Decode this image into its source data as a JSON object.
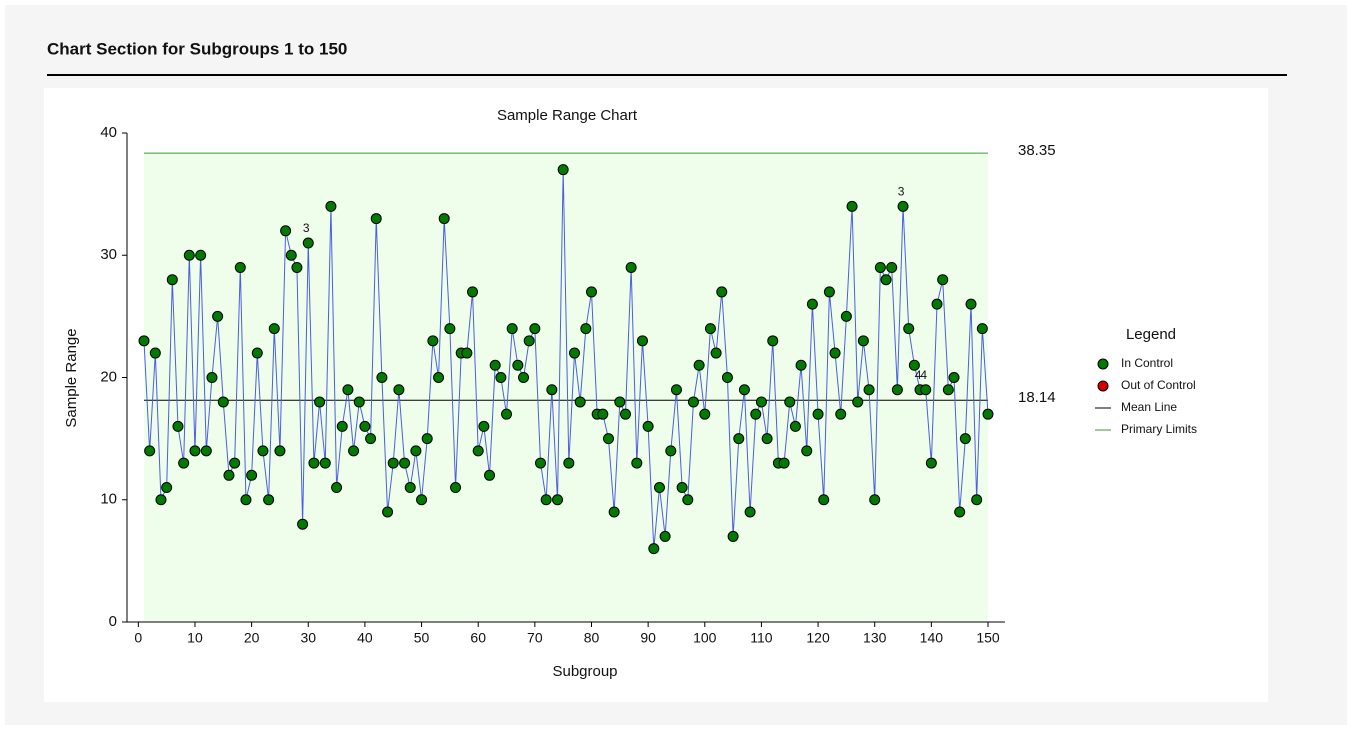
{
  "header": {
    "title": "Chart Section for Subgroups 1 to 150"
  },
  "chart_data": {
    "type": "line",
    "title": "Sample Range Chart",
    "x_label": "Subgroup",
    "y_label": "Sample Range",
    "x": [
      1,
      2,
      3,
      4,
      5,
      6,
      7,
      8,
      9,
      10,
      11,
      12,
      13,
      14,
      15,
      16,
      17,
      18,
      19,
      20,
      21,
      22,
      23,
      24,
      25,
      26,
      27,
      28,
      29,
      30,
      31,
      32,
      33,
      34,
      35,
      36,
      37,
      38,
      39,
      40,
      41,
      42,
      43,
      44,
      45,
      46,
      47,
      48,
      49,
      50,
      51,
      52,
      53,
      54,
      55,
      56,
      57,
      58,
      59,
      60,
      61,
      62,
      63,
      64,
      65,
      66,
      67,
      68,
      69,
      70,
      71,
      72,
      73,
      74,
      75,
      76,
      77,
      78,
      79,
      80,
      81,
      82,
      83,
      84,
      85,
      86,
      87,
      88,
      89,
      90,
      91,
      92,
      93,
      94,
      95,
      96,
      97,
      98,
      99,
      100,
      101,
      102,
      103,
      104,
      105,
      106,
      107,
      108,
      109,
      110,
      111,
      112,
      113,
      114,
      115,
      116,
      117,
      118,
      119,
      120,
      121,
      122,
      123,
      124,
      125,
      126,
      127,
      128,
      129,
      130,
      131,
      132,
      133,
      134,
      135,
      136,
      137,
      138,
      139,
      140,
      141,
      142,
      143,
      144,
      145,
      146,
      147,
      148,
      149,
      150
    ],
    "series": [
      {
        "name": "In Control",
        "color": "#007a00",
        "line_color": "#4a5fe0",
        "values": [
          23,
          14,
          22,
          10,
          11,
          28,
          16,
          13,
          30,
          14,
          30,
          14,
          20,
          25,
          18,
          12,
          13,
          29,
          10,
          12,
          22,
          14,
          10,
          24,
          14,
          32,
          30,
          29,
          8,
          31,
          13,
          18,
          13,
          34,
          11,
          16,
          19,
          14,
          18,
          16,
          15,
          33,
          20,
          9,
          13,
          19,
          13,
          11,
          14,
          10,
          15,
          23,
          20,
          33,
          24,
          11,
          22,
          22,
          27,
          14,
          16,
          12,
          21,
          20,
          17,
          24,
          21,
          20,
          23,
          24,
          13,
          10,
          19,
          10,
          37,
          13,
          22,
          18,
          24,
          27,
          17,
          17,
          15,
          9,
          18,
          17,
          29,
          13,
          23,
          16,
          6,
          11,
          7,
          14,
          19,
          11,
          10,
          18,
          21,
          17,
          24,
          22,
          27,
          20,
          7,
          15,
          19,
          9,
          17,
          18,
          15,
          23,
          13,
          13,
          18,
          16,
          21,
          14,
          26,
          17,
          10,
          27,
          22,
          17,
          25,
          34,
          18,
          23,
          19,
          10,
          29,
          28,
          29,
          19,
          34,
          24,
          21,
          19,
          19,
          13,
          26,
          28,
          19,
          20,
          9,
          15,
          26,
          10,
          24,
          17
        ]
      }
    ],
    "out_of_control": {
      "name": "Out of Control",
      "color": "#d40000"
    },
    "reference_lines": [
      {
        "name": "Mean Line",
        "value": 18.14,
        "color": "#000000"
      },
      {
        "name": "Primary Limits",
        "value": 38.35,
        "color": "#3a9a3a"
      }
    ],
    "annotations": [
      {
        "x": 30,
        "text": "3"
      },
      {
        "x": 135,
        "text": "3"
      },
      {
        "x": 138,
        "text": "4"
      },
      {
        "x": 139,
        "text": "4"
      }
    ],
    "legend_title": "Legend",
    "xlim": [
      -2,
      153
    ],
    "ylim": [
      0,
      40
    ],
    "xticks": [
      0,
      10,
      20,
      30,
      40,
      50,
      60,
      70,
      80,
      90,
      100,
      110,
      120,
      130,
      140,
      150
    ],
    "yticks": [
      0,
      10,
      20,
      30,
      40
    ]
  }
}
